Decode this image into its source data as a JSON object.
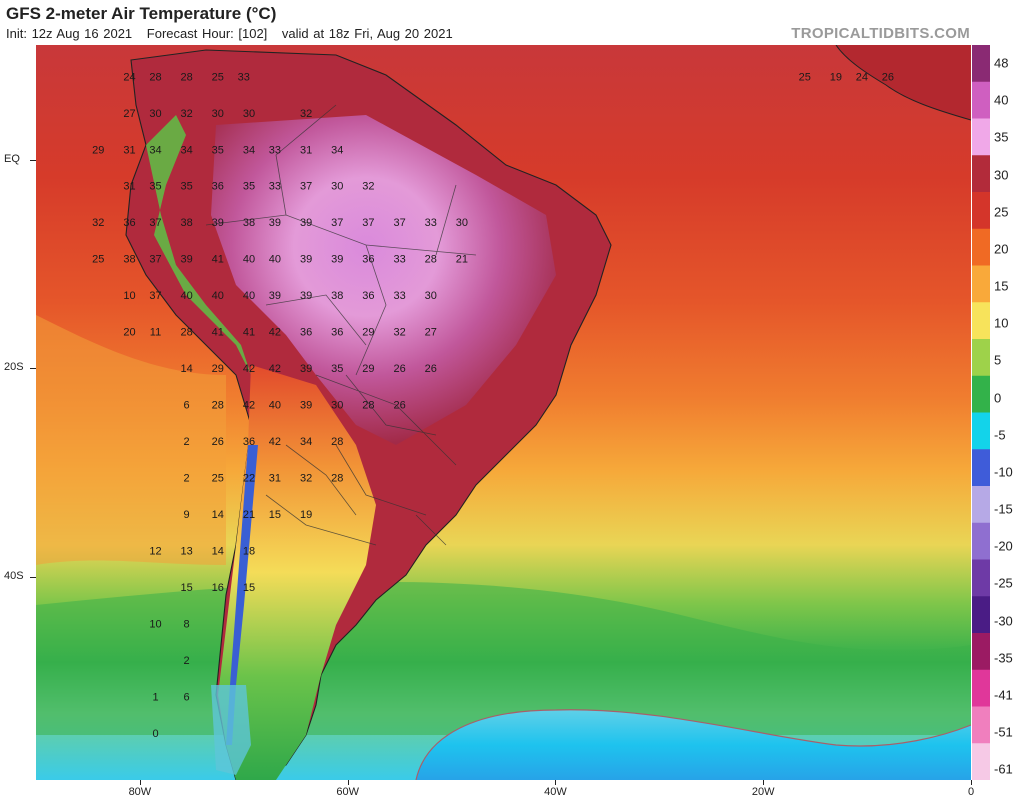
{
  "header": {
    "title": "GFS 2-meter Air Temperature (°C)",
    "init": "Init: 12z Aug 16 2021",
    "forecast_hour": "Forecast Hour: [102]",
    "valid": "valid at 18z Fri, Aug 20 2021",
    "brand": "TROPICALTIDBITS.COM"
  },
  "axes": {
    "lat_labels": [
      {
        "text": "EQ",
        "value": 0
      },
      {
        "text": "20S",
        "value": -20
      },
      {
        "text": "40S",
        "value": -40
      }
    ],
    "lon_labels": [
      {
        "text": "80W",
        "value": -80
      },
      {
        "text": "60W",
        "value": -60
      },
      {
        "text": "40W",
        "value": -40
      },
      {
        "text": "20W",
        "value": -20
      },
      {
        "text": "0",
        "value": 0
      }
    ]
  },
  "colorbar": {
    "labels": [
      "48",
      "40",
      "35",
      "30",
      "25",
      "20",
      "15",
      "10",
      "5",
      "0",
      "-5",
      "-10",
      "-15",
      "-20",
      "-25",
      "-30",
      "-35",
      "-41",
      "-51",
      "-61"
    ],
    "colors": [
      "#8a2a73",
      "#cf5fc0",
      "#f0a8e8",
      "#b22b3a",
      "#d4352a",
      "#f06a24",
      "#f9a93a",
      "#f7e35b",
      "#9ed24a",
      "#33b24a",
      "#13d3ea",
      "#3f5cd9",
      "#b6a9e6",
      "#8f6fd0",
      "#6e3aa6",
      "#4a1c85",
      "#9b1b63",
      "#e0379a",
      "#f07fbe",
      "#f6c9e6"
    ]
  },
  "map": {
    "labels": [
      {
        "t": "24",
        "lon": -81,
        "lat": 8
      },
      {
        "t": "28",
        "lon": -78.5,
        "lat": 8
      },
      {
        "t": "28",
        "lon": -75.5,
        "lat": 8
      },
      {
        "t": "25",
        "lon": -72.5,
        "lat": 8
      },
      {
        "t": "33",
        "lon": -70,
        "lat": 8
      },
      {
        "t": "27",
        "lon": -81,
        "lat": 4.5
      },
      {
        "t": "30",
        "lon": -78.5,
        "lat": 4.5
      },
      {
        "t": "32",
        "lon": -75.5,
        "lat": 4.5
      },
      {
        "t": "30",
        "lon": -72.5,
        "lat": 4.5
      },
      {
        "t": "30",
        "lon": -69.5,
        "lat": 4.5
      },
      {
        "t": "32",
        "lon": -64,
        "lat": 4.5
      },
      {
        "t": "29",
        "lon": -84,
        "lat": 1
      },
      {
        "t": "31",
        "lon": -81,
        "lat": 1
      },
      {
        "t": "34",
        "lon": -78.5,
        "lat": 1
      },
      {
        "t": "34",
        "lon": -75.5,
        "lat": 1
      },
      {
        "t": "35",
        "lon": -72.5,
        "lat": 1
      },
      {
        "t": "34",
        "lon": -69.5,
        "lat": 1
      },
      {
        "t": "33",
        "lon": -67,
        "lat": 1
      },
      {
        "t": "31",
        "lon": -64,
        "lat": 1
      },
      {
        "t": "34",
        "lon": -61,
        "lat": 1
      },
      {
        "t": "31",
        "lon": -81,
        "lat": -2.5
      },
      {
        "t": "35",
        "lon": -78.5,
        "lat": -2.5
      },
      {
        "t": "35",
        "lon": -75.5,
        "lat": -2.5
      },
      {
        "t": "36",
        "lon": -72.5,
        "lat": -2.5
      },
      {
        "t": "35",
        "lon": -69.5,
        "lat": -2.5
      },
      {
        "t": "33",
        "lon": -67,
        "lat": -2.5
      },
      {
        "t": "37",
        "lon": -64,
        "lat": -2.5
      },
      {
        "t": "30",
        "lon": -61,
        "lat": -2.5
      },
      {
        "t": "32",
        "lon": -58,
        "lat": -2.5
      },
      {
        "t": "32",
        "lon": -84,
        "lat": -6
      },
      {
        "t": "36",
        "lon": -81,
        "lat": -6
      },
      {
        "t": "37",
        "lon": -78.5,
        "lat": -6
      },
      {
        "t": "38",
        "lon": -75.5,
        "lat": -6
      },
      {
        "t": "39",
        "lon": -72.5,
        "lat": -6
      },
      {
        "t": "38",
        "lon": -69.5,
        "lat": -6
      },
      {
        "t": "39",
        "lon": -67,
        "lat": -6
      },
      {
        "t": "39",
        "lon": -64,
        "lat": -6
      },
      {
        "t": "37",
        "lon": -61,
        "lat": -6
      },
      {
        "t": "37",
        "lon": -58,
        "lat": -6
      },
      {
        "t": "37",
        "lon": -55,
        "lat": -6
      },
      {
        "t": "33",
        "lon": -52,
        "lat": -6
      },
      {
        "t": "30",
        "lon": -49,
        "lat": -6
      },
      {
        "t": "25",
        "lon": -84,
        "lat": -9.5
      },
      {
        "t": "38",
        "lon": -81,
        "lat": -9.5
      },
      {
        "t": "37",
        "lon": -78.5,
        "lat": -9.5
      },
      {
        "t": "39",
        "lon": -75.5,
        "lat": -9.5
      },
      {
        "t": "41",
        "lon": -72.5,
        "lat": -9.5
      },
      {
        "t": "40",
        "lon": -69.5,
        "lat": -9.5
      },
      {
        "t": "40",
        "lon": -67,
        "lat": -9.5
      },
      {
        "t": "39",
        "lon": -64,
        "lat": -9.5
      },
      {
        "t": "39",
        "lon": -61,
        "lat": -9.5
      },
      {
        "t": "36",
        "lon": -58,
        "lat": -9.5
      },
      {
        "t": "33",
        "lon": -55,
        "lat": -9.5
      },
      {
        "t": "28",
        "lon": -52,
        "lat": -9.5
      },
      {
        "t": "21",
        "lon": -49,
        "lat": -9.5
      },
      {
        "t": "10",
        "lon": -81,
        "lat": -13
      },
      {
        "t": "37",
        "lon": -78.5,
        "lat": -13
      },
      {
        "t": "40",
        "lon": -75.5,
        "lat": -13
      },
      {
        "t": "40",
        "lon": -72.5,
        "lat": -13
      },
      {
        "t": "40",
        "lon": -69.5,
        "lat": -13
      },
      {
        "t": "39",
        "lon": -67,
        "lat": -13
      },
      {
        "t": "39",
        "lon": -64,
        "lat": -13
      },
      {
        "t": "38",
        "lon": -61,
        "lat": -13
      },
      {
        "t": "36",
        "lon": -58,
        "lat": -13
      },
      {
        "t": "33",
        "lon": -55,
        "lat": -13
      },
      {
        "t": "30",
        "lon": -52,
        "lat": -13
      },
      {
        "t": "20",
        "lon": -81,
        "lat": -16.5
      },
      {
        "t": "11",
        "lon": -78.5,
        "lat": -16.5
      },
      {
        "t": "28",
        "lon": -75.5,
        "lat": -16.5
      },
      {
        "t": "41",
        "lon": -72.5,
        "lat": -16.5
      },
      {
        "t": "41",
        "lon": -69.5,
        "lat": -16.5
      },
      {
        "t": "42",
        "lon": -67,
        "lat": -16.5
      },
      {
        "t": "36",
        "lon": -64,
        "lat": -16.5
      },
      {
        "t": "36",
        "lon": -61,
        "lat": -16.5
      },
      {
        "t": "29",
        "lon": -58,
        "lat": -16.5
      },
      {
        "t": "32",
        "lon": -55,
        "lat": -16.5
      },
      {
        "t": "27",
        "lon": -52,
        "lat": -16.5
      },
      {
        "t": "14",
        "lon": -75.5,
        "lat": -20
      },
      {
        "t": "29",
        "lon": -72.5,
        "lat": -20
      },
      {
        "t": "42",
        "lon": -69.5,
        "lat": -20
      },
      {
        "t": "42",
        "lon": -67,
        "lat": -20
      },
      {
        "t": "39",
        "lon": -64,
        "lat": -20
      },
      {
        "t": "35",
        "lon": -61,
        "lat": -20
      },
      {
        "t": "29",
        "lon": -58,
        "lat": -20
      },
      {
        "t": "26",
        "lon": -55,
        "lat": -20
      },
      {
        "t": "26",
        "lon": -52,
        "lat": -20
      },
      {
        "t": "6",
        "lon": -75.5,
        "lat": -23.5
      },
      {
        "t": "28",
        "lon": -72.5,
        "lat": -23.5
      },
      {
        "t": "42",
        "lon": -69.5,
        "lat": -23.5
      },
      {
        "t": "40",
        "lon": -67,
        "lat": -23.5
      },
      {
        "t": "39",
        "lon": -64,
        "lat": -23.5
      },
      {
        "t": "30",
        "lon": -61,
        "lat": -23.5
      },
      {
        "t": "28",
        "lon": -58,
        "lat": -23.5
      },
      {
        "t": "26",
        "lon": -55,
        "lat": -23.5
      },
      {
        "t": "2",
        "lon": -75.5,
        "lat": -27
      },
      {
        "t": "26",
        "lon": -72.5,
        "lat": -27
      },
      {
        "t": "36",
        "lon": -69.5,
        "lat": -27
      },
      {
        "t": "42",
        "lon": -67,
        "lat": -27
      },
      {
        "t": "34",
        "lon": -64,
        "lat": -27
      },
      {
        "t": "28",
        "lon": -61,
        "lat": -27
      },
      {
        "t": "2",
        "lon": -75.5,
        "lat": -30.5
      },
      {
        "t": "25",
        "lon": -72.5,
        "lat": -30.5
      },
      {
        "t": "22",
        "lon": -69.5,
        "lat": -30.5
      },
      {
        "t": "31",
        "lon": -67,
        "lat": -30.5
      },
      {
        "t": "32",
        "lon": -64,
        "lat": -30.5
      },
      {
        "t": "28",
        "lon": -61,
        "lat": -30.5
      },
      {
        "t": "9",
        "lon": -75.5,
        "lat": -34
      },
      {
        "t": "14",
        "lon": -72.5,
        "lat": -34
      },
      {
        "t": "21",
        "lon": -69.5,
        "lat": -34
      },
      {
        "t": "15",
        "lon": -67,
        "lat": -34
      },
      {
        "t": "19",
        "lon": -64,
        "lat": -34
      },
      {
        "t": "12",
        "lon": -78.5,
        "lat": -37.5
      },
      {
        "t": "13",
        "lon": -75.5,
        "lat": -37.5
      },
      {
        "t": "14",
        "lon": -72.5,
        "lat": -37.5
      },
      {
        "t": "18",
        "lon": -69.5,
        "lat": -37.5
      },
      {
        "t": "15",
        "lon": -75.5,
        "lat": -41
      },
      {
        "t": "16",
        "lon": -72.5,
        "lat": -41
      },
      {
        "t": "15",
        "lon": -69.5,
        "lat": -41
      },
      {
        "t": "10",
        "lon": -78.5,
        "lat": -44.5
      },
      {
        "t": "8",
        "lon": -75.5,
        "lat": -44.5
      },
      {
        "t": "2",
        "lon": -75.5,
        "lat": -48
      },
      {
        "t": "1",
        "lon": -78.5,
        "lat": -51.5
      },
      {
        "t": "6",
        "lon": -75.5,
        "lat": -51.5
      },
      {
        "t": "0",
        "lon": -78.5,
        "lat": -55
      },
      {
        "t": "25",
        "lon": -16,
        "lat": 8
      },
      {
        "t": "19",
        "lon": -13,
        "lat": 8
      },
      {
        "t": "24",
        "lon": -10.5,
        "lat": 8
      },
      {
        "t": "26",
        "lon": -8,
        "lat": 8
      }
    ]
  }
}
